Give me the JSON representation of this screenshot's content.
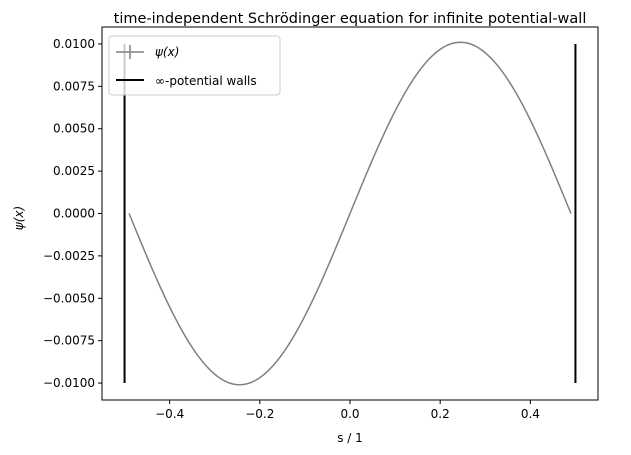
{
  "chart_data": {
    "type": "line",
    "title": "time-independent Schrödinger equation for infinite potential-wall",
    "xlabel": "s / 1",
    "ylabel": "ψ(x)",
    "xlim": [
      -0.55,
      0.55
    ],
    "ylim": [
      -0.011,
      0.011
    ],
    "xticks": [
      -0.4,
      -0.2,
      0.0,
      0.2,
      0.4
    ],
    "xtick_labels": [
      "−0.4",
      "−0.2",
      "0.0",
      "0.2",
      "0.4"
    ],
    "yticks": [
      -0.01,
      -0.0075,
      -0.005,
      -0.0025,
      0.0,
      0.0025,
      0.005,
      0.0075,
      0.01
    ],
    "ytick_labels": [
      "−0.0100",
      "−0.0075",
      "−0.0050",
      "−0.0025",
      "0.0000",
      "0.0025",
      "0.0050",
      "0.0075",
      "0.0100"
    ],
    "grid": false,
    "legend_position": "upper-left",
    "series": [
      {
        "name": "ψ(x)",
        "color": "#808080",
        "x": [
          -0.49,
          -0.45,
          -0.4,
          -0.35,
          -0.3,
          -0.25,
          -0.2,
          -0.15,
          -0.1,
          -0.05,
          0.0,
          0.05,
          0.1,
          0.15,
          0.2,
          0.25,
          0.3,
          0.35,
          0.4,
          0.45,
          0.49
        ],
        "y": [
          0.0,
          -0.0025,
          -0.0059,
          -0.0081,
          -0.0096,
          -0.0101,
          -0.0096,
          -0.0082,
          -0.006,
          -0.0032,
          0.0,
          0.0032,
          0.0061,
          0.0083,
          0.0096,
          0.0101,
          0.0096,
          0.0082,
          0.0059,
          0.0031,
          0.0
        ]
      },
      {
        "name": "∞-potential walls",
        "color": "#000000",
        "segments": [
          {
            "x": -0.5,
            "y": [
              -0.01,
              0.01
            ]
          },
          {
            "x": 0.5,
            "y": [
              -0.01,
              0.01
            ]
          }
        ]
      }
    ]
  }
}
